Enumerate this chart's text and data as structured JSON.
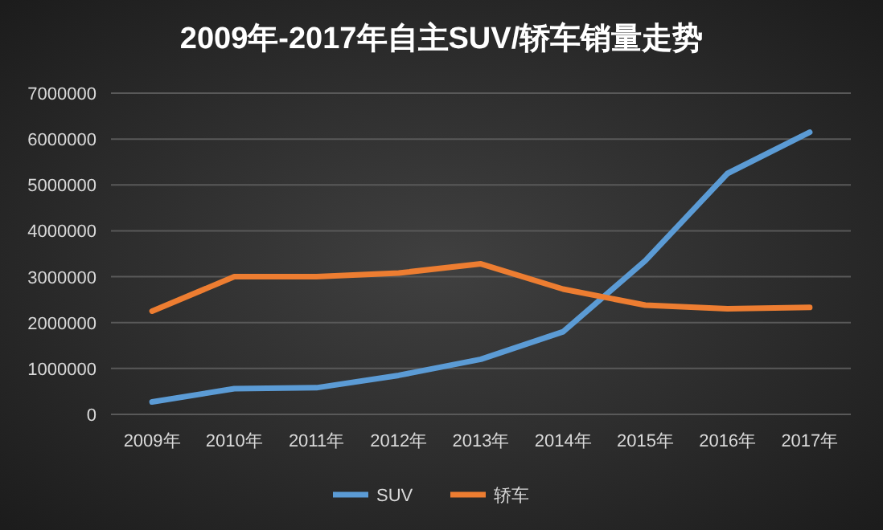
{
  "chart_data": {
    "type": "line",
    "title": "2009年-2017年自主SUV/轿车销量走势",
    "categories": [
      "2009年",
      "2010年",
      "2011年",
      "2012年",
      "2013年",
      "2014年",
      "2015年",
      "2016年",
      "2017年"
    ],
    "series": [
      {
        "name": "SUV",
        "color": "#5b9bd5",
        "values": [
          270000,
          560000,
          580000,
          850000,
          1200000,
          1800000,
          3350000,
          5250000,
          6150000
        ]
      },
      {
        "name": "轿车",
        "color": "#ed7d31",
        "values": [
          2250000,
          3000000,
          3000000,
          3080000,
          3280000,
          2730000,
          2380000,
          2300000,
          2330000
        ]
      }
    ],
    "ylim": [
      0,
      7000000
    ],
    "yticks": [
      0,
      1000000,
      2000000,
      3000000,
      4000000,
      5000000,
      6000000,
      7000000
    ],
    "grid": "y",
    "legend": "bottom"
  }
}
